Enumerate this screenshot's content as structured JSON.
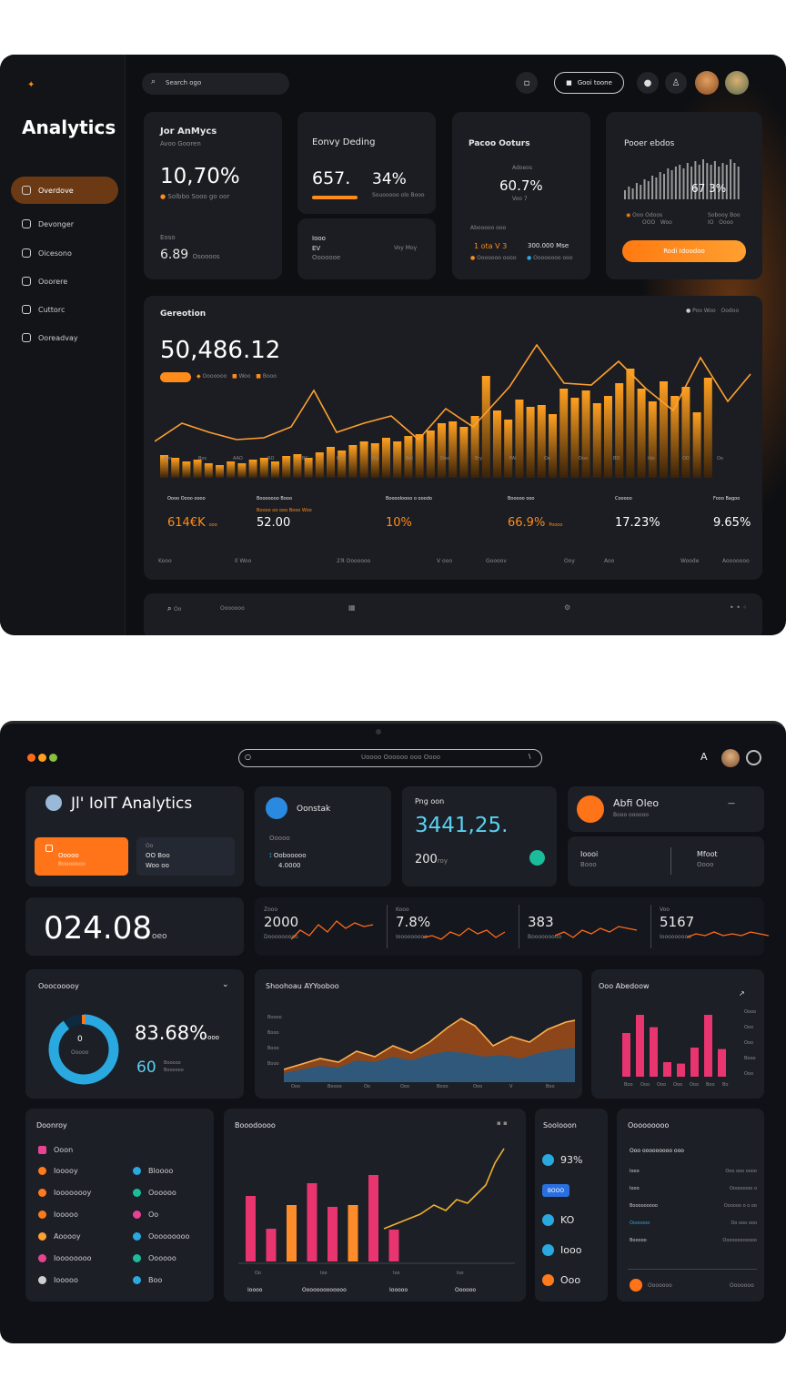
{
  "top": {
    "search_placeholder": "Search ogo",
    "header_button": "Gooi toone",
    "sidebar": {
      "title": "Analytics",
      "items": [
        {
          "label": "Overdove",
          "active": true
        },
        {
          "label": "Devonger",
          "active": false
        },
        {
          "label": "Oicesono",
          "active": false
        },
        {
          "label": "Ooorere",
          "active": false
        },
        {
          "label": "Cuttorc",
          "active": false
        },
        {
          "label": "Ooreadvay",
          "active": false
        }
      ]
    },
    "card1": {
      "title": "Jor AnMycs",
      "subtitle": "Avoo Gooren",
      "value": "10,70%",
      "note": "Solbbo Sooo go oor",
      "foot_label": "Eoso",
      "foot_value": "6.89",
      "foot_unit": "Osoooos"
    },
    "card2": {
      "title": "Eonvy Deding",
      "value": "657.",
      "value2": "34%",
      "note": "Souooooo olo Booo",
      "sub_label1": "Iooo",
      "sub_label2": "EV",
      "sub_label3": "Ooooooe",
      "sub_right": "Voy Moy"
    },
    "card3": {
      "title": "Pacoo Ooturs",
      "small_label": "Adoeos",
      "value": "60.7%",
      "sub": "Voo 7",
      "legend_title": "Abooooo ooo",
      "stat_a": "1 ota V 3",
      "stat_b": "300.000 Mse",
      "legend_a": "Ooooooo oooo",
      "legend_b": "Oooooooo ooo"
    },
    "card4": {
      "title": "Pooer ebdos",
      "value": "67 3%",
      "label_a": "Ooo Odoos",
      "label_a2": "OOO",
      "label_a3": "Woo",
      "label_b": "Sobooy Boo",
      "label_b2": "IO",
      "label_b3": "Oooo",
      "button": "Rodi Idoodoo"
    },
    "main": {
      "title": "Gereotion",
      "legend_right_a": "Poo Woo",
      "legend_right_b": "Oodoo",
      "big_value": "50,486.12",
      "legend": [
        "Ooooooo",
        "Woo",
        "Booo"
      ],
      "x_ticks": [
        "Ayo",
        "Bos",
        "AAO",
        "RO",
        "BC",
        "Roy",
        "Wy",
        "Bel",
        "Ooo",
        "Ery",
        "PAI",
        "Oo",
        "Ooo",
        "BO",
        "Ido",
        "OO",
        "Oo"
      ],
      "stats": [
        {
          "label": "Oooo Oooo oooo",
          "value": "614€K",
          "unit": "ooo"
        },
        {
          "label": "Booooooo Booo",
          "value": "52.00",
          "note": "Boooo oo ooo Booo Woo"
        },
        {
          "label": "Booooloooo o ooodo",
          "value": "10%"
        },
        {
          "label": "Booooo ooo",
          "value": "66.9%",
          "unit": "Poooo"
        },
        {
          "label": "Cooooo",
          "value": "17.23%"
        },
        {
          "label": "Fooo Bagoo",
          "value": "9.65%"
        }
      ],
      "footer": [
        "Kooo",
        "Il Woo",
        "2ℜ Ooooooo",
        "V ooo",
        "Goooov",
        "Ooy",
        "Aoo",
        "Woode",
        "Aooooooo"
      ]
    },
    "bottom_bar": [
      "Oo",
      "Ooooooo",
      "Oo",
      "o"
    ]
  },
  "bottom": {
    "search_text": "Uoooo Oooooo ooo Oooo",
    "brand": "Jl' IoIT Analytics",
    "cta_label": "Ooooo",
    "cta_sub": "Booooooo",
    "cta_side_a": "Oo",
    "cta_side_b": "OO Boo",
    "cta_side_c": "Woo oo",
    "card_b": {
      "title": "Oonstak",
      "sub": "Ooooo",
      "row1": "Oobooooo",
      "row2": "4.0000"
    },
    "card_c": {
      "title": "Png oon",
      "value": "3441,25.",
      "sub_value": "200",
      "sub_label": "roy"
    },
    "card_d": {
      "title": "Abfi Oleo",
      "sub": "Booo oooooo",
      "foot_a": "Ioooi",
      "foot_a2": "Booo",
      "foot_b": "Mfoot",
      "foot_b2": "Oooo"
    },
    "big_metric": {
      "value": "024.08",
      "unit": "oeo"
    },
    "spark": [
      {
        "value": "2000",
        "label": "Zooo",
        "foot": "Dooooooooo"
      },
      {
        "value": "7.8%",
        "label": "Kooo",
        "foot": "Iooooooooo"
      },
      {
        "value": "383",
        "label": "",
        "foot": "Booooooooo"
      },
      {
        "value": "5167",
        "label": "Voo",
        "foot": "Iooooooooo"
      }
    ],
    "donut": {
      "title": "Ooocooooy",
      "center_a": "0",
      "center_b": "Ooooo",
      "value": "83.68%",
      "value_unit": "ooo",
      "value2": "60",
      "value2_label": "Booooo",
      "value2_label2": "Boooooo",
      "fill": 0.9
    },
    "area": {
      "title": "Shoohoau AYYooboo",
      "y_ticks": [
        "Boooo",
        "Booo",
        "Booo",
        "Booo"
      ],
      "x_ticks": [
        "Ooo",
        "Boooo",
        "Oo",
        "Ooo",
        "Booo",
        "Ooo",
        "V",
        "Boo"
      ]
    },
    "bars_small": {
      "title": "Ooo Abedoow",
      "y_ticks": [
        "Oooo",
        "Ooo",
        "Ooo",
        "Booo",
        "Ooo"
      ],
      "x_ticks": [
        "Boo",
        "Ooo",
        "Ooo",
        "Ooo",
        "Ooo",
        "Boo",
        "Bo"
      ],
      "values": [
        60,
        85,
        68,
        20,
        18,
        40,
        85,
        38
      ]
    },
    "list": {
      "title": "Doonroy",
      "top": "Ooon",
      "left": [
        {
          "label": "Iooooy",
          "color": "#ff7a1a"
        },
        {
          "label": "Ioooooooy",
          "color": "#ff7a1a"
        },
        {
          "label": "Iooooo",
          "color": "#ff7a1a"
        },
        {
          "label": "Aooooy",
          "color": "#ffa033"
        },
        {
          "label": "Ioooooooo",
          "color": "#e84393"
        },
        {
          "label": "Iooooo",
          "color": "#cfcfcf"
        }
      ],
      "right": [
        {
          "label": "Bloooo",
          "color": "#2aa8e0"
        },
        {
          "label": "Oooooo",
          "color": "#1abc9c"
        },
        {
          "label": "Oo",
          "color": "#e84393"
        },
        {
          "label": "Ooooooooo",
          "color": "#2aa8e0"
        },
        {
          "label": "Oooooo",
          "color": "#1abc9c"
        },
        {
          "label": "Boo",
          "color": "#2aa8e0"
        }
      ]
    },
    "combo": {
      "title": "Booodoooo",
      "bar_values": [
        72,
        36,
        62,
        86,
        60,
        62,
        95,
        35
      ],
      "x_ticks": [
        "Oo",
        "Ioo",
        "Ioo",
        "Ioo"
      ],
      "footer": [
        "Ioooo",
        "Ooooooooooooo",
        "Iooooo",
        "Oooooo"
      ]
    },
    "mini_list": {
      "title": "Soolooon",
      "rows": [
        {
          "value": "93%",
          "color": "#2aa8e0"
        },
        {
          "value": "BOOO",
          "color": "#2a6fe0"
        },
        {
          "value": "KO",
          "color": "#2aa8e0"
        },
        {
          "value": "Iooo",
          "color": "#2aa8e0"
        },
        {
          "value": "Ooo",
          "color": "#ff7a1a"
        }
      ]
    },
    "table": {
      "title": "Ooooooooo",
      "subtitle": "Ooo ooooooooo ooo",
      "rows": [
        [
          "Iooo",
          "Ooo ooo oooo"
        ],
        [
          "Iooo",
          "Oooooooo o"
        ],
        [
          "Booooooooo",
          "Oooooo o o oo"
        ],
        [
          "Ooooooo",
          "Oo ooo ooo"
        ],
        [
          "Booooo",
          "Oooooooooooo"
        ]
      ],
      "footer_a": "Ooooooo",
      "footer_b": "Ooooooo"
    }
  }
}
